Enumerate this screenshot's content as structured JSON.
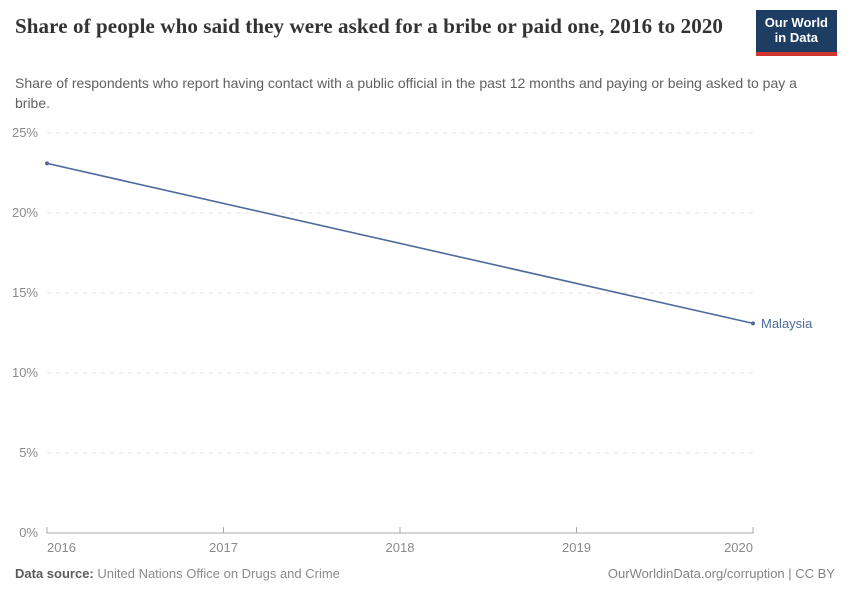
{
  "header": {
    "title": "Share of people who said they were asked for a bribe or paid one, 2016 to 2020",
    "subtitle": "Share of respondents who report having contact with a public official in the past 12 months and paying or being asked to pay a bribe.",
    "logo": {
      "line1": "Our World",
      "line2": "in Data",
      "bg_color": "#1d3d63",
      "accent_color": "#d0342c"
    }
  },
  "chart_data": {
    "type": "line",
    "title": "Share of people who said they were asked for a bribe or paid one, 2016 to 2020",
    "series": [
      {
        "name": "Malaysia",
        "color": "#4c6a9c",
        "points": [
          {
            "x": 2016,
            "y": 23.1
          },
          {
            "x": 2020,
            "y": 13.1
          }
        ]
      }
    ],
    "xlim": [
      2016,
      2020
    ],
    "ylim": [
      0,
      25
    ],
    "x_ticks": [
      {
        "value": 2016,
        "label": "2016"
      },
      {
        "value": 2017,
        "label": "2017"
      },
      {
        "value": 2018,
        "label": "2018"
      },
      {
        "value": 2019,
        "label": "2019"
      },
      {
        "value": 2020,
        "label": "2020"
      }
    ],
    "y_ticks": [
      {
        "value": 0,
        "label": "0%"
      },
      {
        "value": 5,
        "label": "5%"
      },
      {
        "value": 10,
        "label": "10%"
      },
      {
        "value": 15,
        "label": "15%"
      },
      {
        "value": 20,
        "label": "20%"
      },
      {
        "value": 25,
        "label": "25%"
      }
    ],
    "grid": "horizontal-dashed",
    "legend": "end-of-line-label"
  },
  "footer": {
    "source_label": "Data source:",
    "source_value": "United Nations Office on Drugs and Crime",
    "credit": "OurWorldinData.org/corruption | CC BY"
  }
}
